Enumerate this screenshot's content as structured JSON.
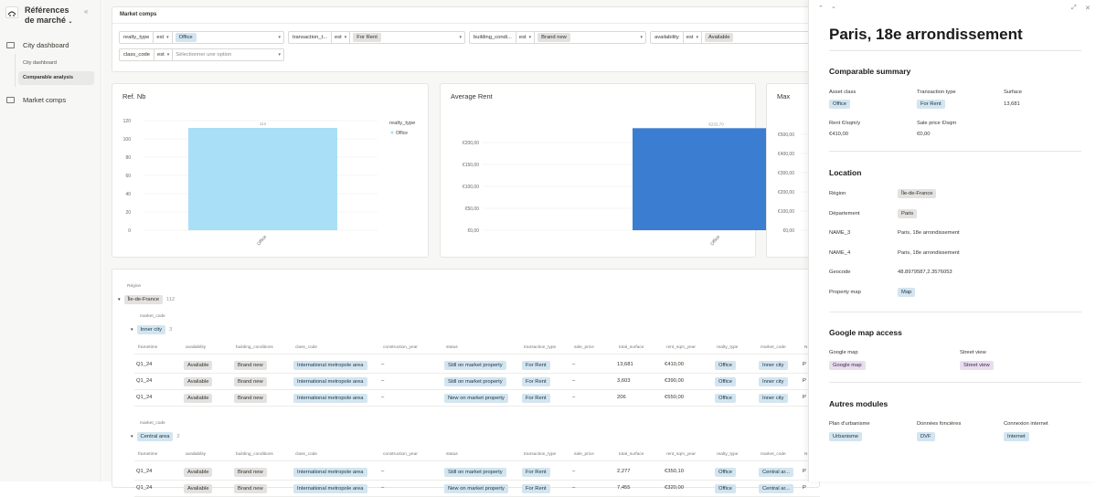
{
  "sidebar": {
    "title": "Références de marché",
    "items": [
      {
        "label": "City dashboard"
      },
      {
        "label": "Market comps"
      }
    ],
    "sub_items": [
      {
        "label": "City dashboard"
      },
      {
        "label": "Comparable analysis"
      }
    ]
  },
  "filters": {
    "title": "Market comps",
    "row1": [
      {
        "name": "realty_type",
        "op": "est",
        "value": "Office"
      },
      {
        "name": "transaction_t...",
        "op": "est",
        "value": "For Rent"
      },
      {
        "name": "building_condi...",
        "op": "est",
        "value": "Brand new"
      },
      {
        "name": "availability",
        "op": "est",
        "value": "Available"
      }
    ],
    "row2": [
      {
        "name": "class_code",
        "op": "est",
        "placeholder": "Sélectionner une option"
      }
    ]
  },
  "charts": [
    {
      "title": "Ref. Nb"
    },
    {
      "title": "Average Rent"
    },
    {
      "title": "Max"
    }
  ],
  "chart_data": [
    {
      "type": "bar",
      "title": "Ref. Nb",
      "categories": [
        "Office"
      ],
      "values": [
        112
      ],
      "data_labels": [
        "112"
      ],
      "ylim": [
        0,
        120
      ],
      "yticks": [
        "0",
        "20",
        "40",
        "60",
        "80",
        "100",
        "120"
      ],
      "legend_title": "realty_type",
      "legend": [
        "Office"
      ],
      "legend_position": "right",
      "color": "#a9dff7"
    },
    {
      "type": "bar",
      "title": "Average Rent",
      "categories": [
        "Office"
      ],
      "values": [
        232.7
      ],
      "data_labels": [
        "€232,70"
      ],
      "ylim": [
        0,
        250
      ],
      "yticks": [
        "€0,00",
        "€50,00",
        "€100,00",
        "€150,00",
        "€200,00"
      ],
      "color": "#3b7ed1"
    },
    {
      "type": "bar",
      "title": "Max",
      "categories": [],
      "values": [],
      "yticks": [
        "€0,00",
        "€100,00",
        "€200,00",
        "€300,00",
        "€400,00",
        "€500,00"
      ]
    }
  ],
  "table": {
    "region_header": "Région",
    "region": "Île-de-France",
    "region_count": "112",
    "market_header": "market_code",
    "headers": [
      "frametime",
      "availability",
      "building_conditions",
      "class_code",
      "construction_year",
      "status",
      "transaction_type",
      "sale_price",
      "total_surface",
      "rent_sqm_year",
      "realty_type",
      "market_code",
      "N"
    ],
    "groups": [
      {
        "name": "Inner city",
        "count": "3",
        "rows": [
          [
            "Q1_24",
            "Available",
            "Brand new",
            "International metropole area",
            "–",
            "Still on market property",
            "For Rent",
            "–",
            "13,681",
            "€410,00",
            "Office",
            "Inner city",
            "P"
          ],
          [
            "Q1_24",
            "Available",
            "Brand new",
            "International metropole area",
            "–",
            "Still on market property",
            "For Rent",
            "–",
            "3,603",
            "€390,00",
            "Office",
            "Inner city",
            "P"
          ],
          [
            "Q1_24",
            "Available",
            "Brand new",
            "International metropole area",
            "–",
            "New on market property",
            "For Rent",
            "–",
            "206",
            "€550,00",
            "Office",
            "Inner city",
            "P"
          ]
        ]
      },
      {
        "name": "Central area",
        "count": "2",
        "rows": [
          [
            "Q1_24",
            "Available",
            "Brand new",
            "International metropole area",
            "–",
            "Still on market property",
            "For Rent",
            "–",
            "2,277",
            "€350,10",
            "Office",
            "Central ar...",
            "P"
          ],
          [
            "Q1_24",
            "Available",
            "Brand new",
            "International metropole area",
            "–",
            "New on market property",
            "For Rent",
            "–",
            "7,455",
            "€320,00",
            "Office",
            "Central ar...",
            "P"
          ]
        ]
      }
    ]
  },
  "panel": {
    "title": "Paris, 18e arrondissement",
    "comparable": {
      "heading": "Comparable summary",
      "asset_class_label": "Asset class",
      "asset_class": "Office",
      "transaction_type_label": "Transaction type",
      "transaction_type": "For Rent",
      "surface_label": "Surface",
      "surface": "13,681",
      "rent_label": "Rent €/sqm/y",
      "rent": "€410,00",
      "sale_price_label": "Sale price €/sqm",
      "sale_price": "€0,00"
    },
    "location": {
      "heading": "Location",
      "rows": [
        {
          "label": "Région",
          "value": "Île-de-France",
          "tag": true
        },
        {
          "label": "Département",
          "value": "Paris",
          "tag": true
        },
        {
          "label": "NAME_3",
          "value": "Paris, 18e arrondissement",
          "tag": false
        },
        {
          "label": "NAME_4",
          "value": "Paris, 18e arrondissement",
          "tag": false
        },
        {
          "label": "Geocode",
          "value": "48.8979587,2.3576053",
          "tag": false
        },
        {
          "label": "Property map",
          "value": "Map",
          "tag": true
        }
      ]
    },
    "google": {
      "heading": "Google map access",
      "map_label": "Google map",
      "map_value": "Google map",
      "street_label": "Street view",
      "street_value": "Street view"
    },
    "modules": {
      "heading": "Autres modules",
      "items": [
        {
          "label": "Plan d'urbanisme",
          "value": "Urbanisme"
        },
        {
          "label": "Données foncières",
          "value": "DVF"
        },
        {
          "label": "Connexion internet",
          "value": "Internet"
        }
      ]
    }
  }
}
